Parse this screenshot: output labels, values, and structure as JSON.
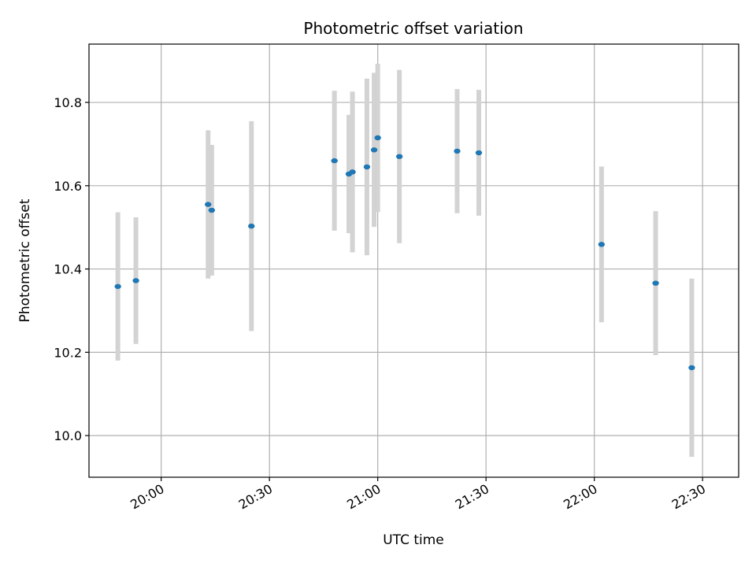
{
  "chart_data": {
    "type": "scatter",
    "title": "Photometric offset variation",
    "xlabel": "UTC time",
    "ylabel": "Photometric offset",
    "xlim": [
      "19:40",
      "22:40"
    ],
    "ylim": [
      9.9,
      10.94
    ],
    "x_ticks": [
      "20:00",
      "20:30",
      "21:00",
      "21:30",
      "22:00",
      "22:30"
    ],
    "y_ticks": [
      "10.0",
      "10.2",
      "10.4",
      "10.6",
      "10.8"
    ],
    "grid": true,
    "colors": {
      "point": "#1f77b4",
      "errorbar": "#d3d3d3",
      "grid": "#b0b0b0"
    },
    "points": [
      {
        "x": "19:48",
        "y": 10.358,
        "err": 0.178
      },
      {
        "x": "19:53",
        "y": 10.372,
        "err": 0.152
      },
      {
        "x": "20:13",
        "y": 10.555,
        "err": 0.178
      },
      {
        "x": "20:14",
        "y": 10.541,
        "err": 0.157
      },
      {
        "x": "20:25",
        "y": 10.503,
        "err": 0.252
      },
      {
        "x": "20:48",
        "y": 10.66,
        "err": 0.168
      },
      {
        "x": "20:52",
        "y": 10.628,
        "err": 0.142
      },
      {
        "x": "20:53",
        "y": 10.633,
        "err": 0.193
      },
      {
        "x": "20:57",
        "y": 10.645,
        "err": 0.212
      },
      {
        "x": "20:59",
        "y": 10.686,
        "err": 0.185
      },
      {
        "x": "21:00",
        "y": 10.715,
        "err": 0.178
      },
      {
        "x": "21:06",
        "y": 10.67,
        "err": 0.208
      },
      {
        "x": "21:22",
        "y": 10.683,
        "err": 0.149
      },
      {
        "x": "21:28",
        "y": 10.679,
        "err": 0.151
      },
      {
        "x": "22:02",
        "y": 10.459,
        "err": 0.187
      },
      {
        "x": "22:17",
        "y": 10.366,
        "err": 0.173
      },
      {
        "x": "22:27",
        "y": 10.163,
        "err": 0.214
      }
    ]
  }
}
